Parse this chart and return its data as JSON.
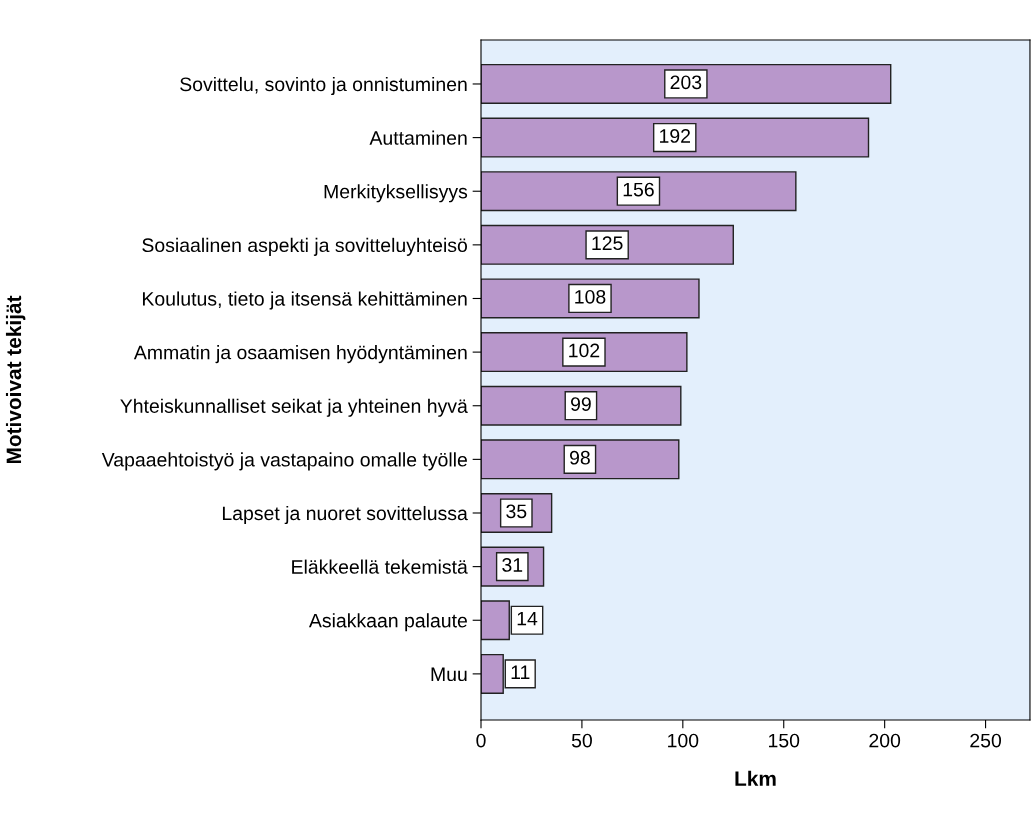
{
  "chart_data": {
    "type": "bar",
    "orientation": "horizontal",
    "xlabel": "Lkm",
    "ylabel": "Motivoivat tekijät",
    "categories": [
      "Sovittelu, sovinto ja onnistuminen",
      "Auttaminen",
      "Merkityksellisyys",
      "Sosiaalinen aspekti ja sovitteluyhteisö",
      "Koulutus, tieto ja itsensä kehittäminen",
      "Ammatin ja osaamisen hyödyntäminen",
      "Yhteiskunnalliset seikat ja yhteinen hyvä",
      "Vapaaehtoistyö ja vastapaino omalle työlle",
      "Lapset ja nuoret sovittelussa",
      "Eläkkeellä tekemistä",
      "Asiakkaan palaute",
      "Muu"
    ],
    "values": [
      203,
      192,
      156,
      125,
      108,
      102,
      99,
      98,
      35,
      31,
      14,
      11
    ],
    "color": "#b897cb",
    "xlim": [
      0,
      272
    ],
    "xticks": [
      0,
      50,
      100,
      150,
      200,
      250
    ],
    "grid": false,
    "data_labels": true
  }
}
